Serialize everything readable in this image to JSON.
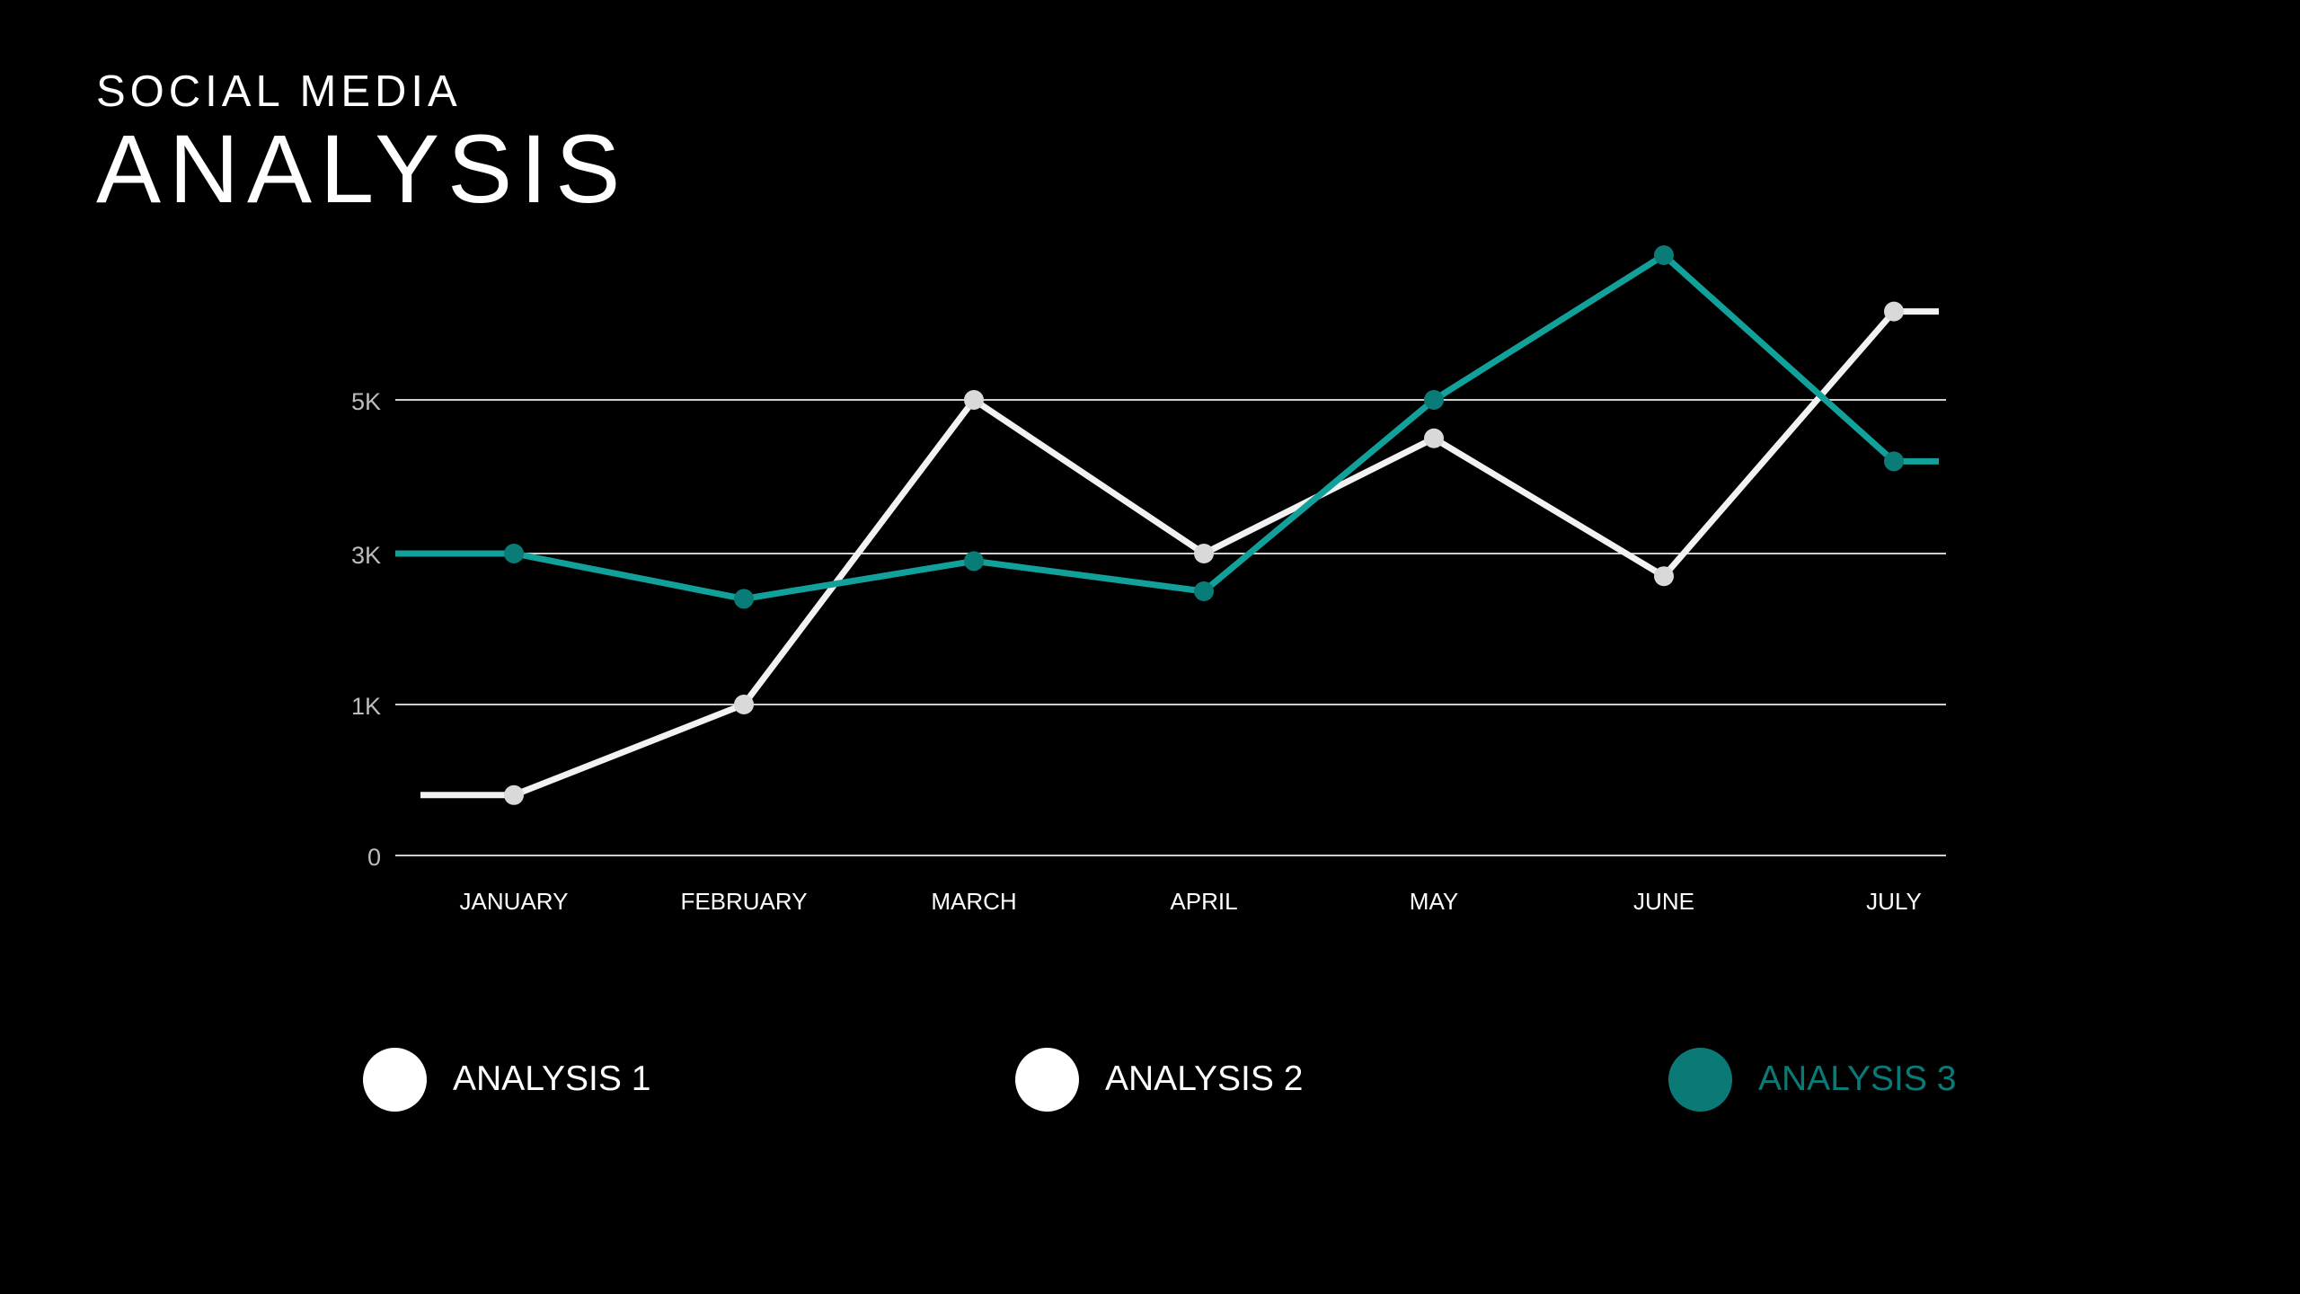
{
  "header": {
    "subtitle": "SOCIAL MEDIA",
    "title": "ANALYSIS"
  },
  "colors": {
    "background": "#000000",
    "text": "#ffffff",
    "grid": "#cfcfcf",
    "axis_label": "#bdbdbd",
    "series_white": "#f2f2f2",
    "series_white_marker": "#d9d9d9",
    "series_teal": "#12a19a",
    "series_teal_marker": "#0a7c78",
    "legend_teal": "#0b7a77"
  },
  "chart_data": {
    "type": "line",
    "categories": [
      "JANUARY",
      "FEBRUARY",
      "MARCH",
      "APRIL",
      "MAY",
      "JUNE",
      "JULY"
    ],
    "y_ticks": [
      {
        "label": "0",
        "value": 0
      },
      {
        "label": "1K",
        "value": 1000
      },
      {
        "label": "3K",
        "value": 3000
      },
      {
        "label": "5K",
        "value": 5000
      }
    ],
    "ylim": [
      0,
      6800
    ],
    "grid": true,
    "series": [
      {
        "name": "ANALYSIS 2",
        "color": "#f2f2f2",
        "values": [
          400,
          1000,
          5000,
          3000,
          4500,
          2700,
          6100
        ]
      },
      {
        "name": "ANALYSIS 3",
        "color": "#12a19a",
        "values": [
          3000,
          2400,
          2900,
          2500,
          5000,
          6800,
          4200
        ]
      }
    ],
    "legend": {
      "placement": "bottom",
      "items": [
        {
          "label": "ANALYSIS 1",
          "color": "#ffffff"
        },
        {
          "label": "ANALYSIS 2",
          "color": "#ffffff"
        },
        {
          "label": "ANALYSIS 3",
          "color": "#0b7a77"
        }
      ]
    }
  }
}
